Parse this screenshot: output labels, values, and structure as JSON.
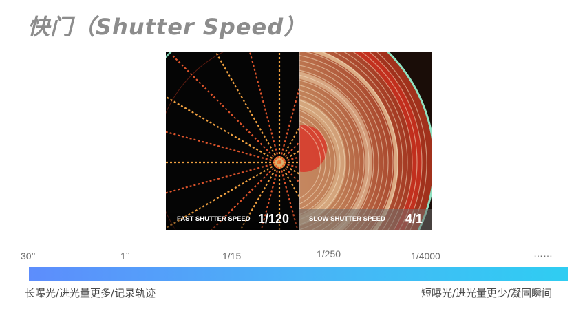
{
  "title": "快门（Shutter Speed）",
  "photo": {
    "left_caption": "FAST SHUTTER SPEED",
    "left_value": "1/120",
    "right_caption": "SLOW SHUTTER SPEED",
    "right_value": "4/1"
  },
  "scale": {
    "ticks": [
      "30’’",
      "1’’",
      "1/15",
      "1/250",
      "1/4000",
      "……"
    ],
    "left_caption": "长曝光/进光量更多/记录轨迹",
    "right_caption": "短曝光/进光量更少/凝固瞬间",
    "gradient_colors": [
      "#5d8dfc",
      "#2fcdf2"
    ]
  }
}
